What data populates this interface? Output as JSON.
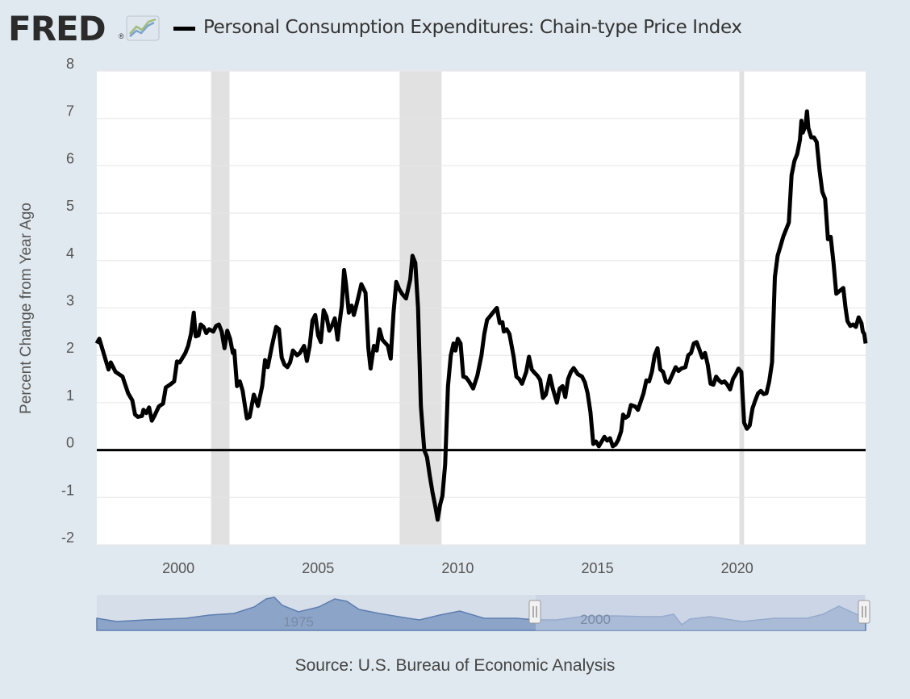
{
  "header": {
    "logo_text": "FRED",
    "logo_registered": "®",
    "series_title": "Personal Consumption Expenditures: Chain-type Price Index"
  },
  "source_note": "Source: U.S. Bureau of Economic Analysis",
  "navigator": {
    "tick_labels": [
      "1975",
      "2000"
    ],
    "handle_icon": "grip-handle-icon"
  },
  "colors": {
    "line": "#000000",
    "recession": "#e1e1e1",
    "background": "#e1e9f0",
    "navigator_fill": "#8ba4c8",
    "navigator_selection": "#c2cde4"
  },
  "chart_data": {
    "type": "line",
    "title": "",
    "ylabel": "Percent Change from Year Ago",
    "xlabel": "",
    "xlim": [
      1997.08,
      2024.6
    ],
    "ylim": [
      -2,
      8
    ],
    "y_ticks": [
      8,
      7,
      6,
      5,
      4,
      3,
      2,
      1,
      0,
      -1,
      -2
    ],
    "x_ticks": [
      2000,
      2005,
      2010,
      2015,
      2020
    ],
    "recessions": [
      [
        2001.17,
        2001.83
      ],
      [
        2007.92,
        2009.42
      ],
      [
        2020.08,
        2020.25
      ]
    ],
    "grid": true,
    "zero_line": true,
    "series": [
      {
        "name": "Personal Consumption Expenditures: Chain-type Price Index",
        "points": [
          [
            1997.08,
            2.25
          ],
          [
            1997.17,
            2.35
          ],
          [
            1997.5,
            1.7
          ],
          [
            1997.58,
            1.85
          ],
          [
            1997.75,
            1.65
          ],
          [
            1998.0,
            1.55
          ],
          [
            1998.2,
            1.2
          ],
          [
            1998.35,
            1.05
          ],
          [
            1998.45,
            0.75
          ],
          [
            1998.55,
            0.7
          ],
          [
            1998.7,
            0.72
          ],
          [
            1998.75,
            0.85
          ],
          [
            1998.85,
            0.78
          ],
          [
            1998.95,
            0.9
          ],
          [
            1999.05,
            0.62
          ],
          [
            1999.15,
            0.73
          ],
          [
            1999.3,
            0.92
          ],
          [
            1999.45,
            0.98
          ],
          [
            1999.55,
            1.32
          ],
          [
            1999.7,
            1.38
          ],
          [
            1999.85,
            1.45
          ],
          [
            1999.95,
            1.87
          ],
          [
            2000.05,
            1.85
          ],
          [
            2000.25,
            2.05
          ],
          [
            2000.35,
            2.2
          ],
          [
            2000.45,
            2.45
          ],
          [
            2000.55,
            2.9
          ],
          [
            2000.62,
            2.4
          ],
          [
            2000.72,
            2.42
          ],
          [
            2000.8,
            2.65
          ],
          [
            2000.9,
            2.6
          ],
          [
            2001.0,
            2.47
          ],
          [
            2001.1,
            2.55
          ],
          [
            2001.25,
            2.5
          ],
          [
            2001.35,
            2.62
          ],
          [
            2001.45,
            2.65
          ],
          [
            2001.55,
            2.5
          ],
          [
            2001.65,
            2.15
          ],
          [
            2001.75,
            2.52
          ],
          [
            2001.85,
            2.35
          ],
          [
            2001.95,
            2.05
          ],
          [
            2002.0,
            2.1
          ],
          [
            2002.1,
            1.35
          ],
          [
            2002.2,
            1.45
          ],
          [
            2002.3,
            1.25
          ],
          [
            2002.45,
            0.67
          ],
          [
            2002.55,
            0.7
          ],
          [
            2002.7,
            1.17
          ],
          [
            2002.85,
            0.93
          ],
          [
            2003.0,
            1.35
          ],
          [
            2003.1,
            1.9
          ],
          [
            2003.2,
            1.75
          ],
          [
            2003.35,
            2.2
          ],
          [
            2003.5,
            2.6
          ],
          [
            2003.6,
            2.55
          ],
          [
            2003.7,
            1.95
          ],
          [
            2003.8,
            1.8
          ],
          [
            2003.9,
            1.75
          ],
          [
            2004.0,
            1.85
          ],
          [
            2004.1,
            2.1
          ],
          [
            2004.25,
            2.0
          ],
          [
            2004.35,
            2.05
          ],
          [
            2004.5,
            2.2
          ],
          [
            2004.6,
            1.88
          ],
          [
            2004.7,
            2.2
          ],
          [
            2004.8,
            2.73
          ],
          [
            2004.9,
            2.85
          ],
          [
            2005.0,
            2.42
          ],
          [
            2005.1,
            2.28
          ],
          [
            2005.2,
            2.95
          ],
          [
            2005.3,
            2.82
          ],
          [
            2005.4,
            2.52
          ],
          [
            2005.5,
            2.63
          ],
          [
            2005.6,
            2.78
          ],
          [
            2005.7,
            2.33
          ],
          [
            2005.75,
            2.6
          ],
          [
            2005.85,
            3.05
          ],
          [
            2005.93,
            3.8
          ],
          [
            2006.0,
            3.5
          ],
          [
            2006.1,
            2.9
          ],
          [
            2006.2,
            3.05
          ],
          [
            2006.28,
            2.85
          ],
          [
            2006.38,
            3.08
          ],
          [
            2006.45,
            3.25
          ],
          [
            2006.55,
            3.5
          ],
          [
            2006.65,
            3.38
          ],
          [
            2006.7,
            3.32
          ],
          [
            2006.8,
            2.15
          ],
          [
            2006.88,
            1.72
          ],
          [
            2007.0,
            2.2
          ],
          [
            2007.1,
            2.1
          ],
          [
            2007.2,
            2.55
          ],
          [
            2007.3,
            2.33
          ],
          [
            2007.42,
            2.25
          ],
          [
            2007.5,
            2.2
          ],
          [
            2007.6,
            1.93
          ],
          [
            2007.7,
            2.9
          ],
          [
            2007.8,
            3.55
          ],
          [
            2007.9,
            3.4
          ],
          [
            2008.0,
            3.3
          ],
          [
            2008.15,
            3.2
          ],
          [
            2008.3,
            3.6
          ],
          [
            2008.38,
            4.1
          ],
          [
            2008.48,
            3.95
          ],
          [
            2008.58,
            3.0
          ],
          [
            2008.68,
            0.93
          ],
          [
            2008.8,
            0.0
          ],
          [
            2008.9,
            -0.15
          ],
          [
            2009.0,
            -0.55
          ],
          [
            2009.1,
            -0.9
          ],
          [
            2009.2,
            -1.2
          ],
          [
            2009.28,
            -1.47
          ],
          [
            2009.37,
            -1.15
          ],
          [
            2009.45,
            -0.97
          ],
          [
            2009.55,
            -0.3
          ],
          [
            2009.65,
            1.35
          ],
          [
            2009.75,
            2.0
          ],
          [
            2009.85,
            2.25
          ],
          [
            2009.92,
            2.1
          ],
          [
            2010.0,
            2.35
          ],
          [
            2010.1,
            2.25
          ],
          [
            2010.2,
            1.55
          ],
          [
            2010.3,
            1.53
          ],
          [
            2010.4,
            1.45
          ],
          [
            2010.55,
            1.3
          ],
          [
            2010.7,
            1.57
          ],
          [
            2010.85,
            2.0
          ],
          [
            2010.95,
            2.45
          ],
          [
            2011.05,
            2.75
          ],
          [
            2011.15,
            2.82
          ],
          [
            2011.3,
            2.93
          ],
          [
            2011.4,
            3.0
          ],
          [
            2011.5,
            2.68
          ],
          [
            2011.6,
            2.7
          ],
          [
            2011.65,
            2.5
          ],
          [
            2011.75,
            2.55
          ],
          [
            2011.85,
            2.45
          ],
          [
            2012.0,
            1.97
          ],
          [
            2012.1,
            1.55
          ],
          [
            2012.2,
            1.5
          ],
          [
            2012.3,
            1.4
          ],
          [
            2012.45,
            1.65
          ],
          [
            2012.55,
            1.97
          ],
          [
            2012.65,
            1.7
          ],
          [
            2012.75,
            1.63
          ],
          [
            2012.85,
            1.57
          ],
          [
            2012.95,
            1.48
          ],
          [
            2013.05,
            1.1
          ],
          [
            2013.15,
            1.17
          ],
          [
            2013.3,
            1.57
          ],
          [
            2013.4,
            1.3
          ],
          [
            2013.55,
            1.0
          ],
          [
            2013.65,
            1.3
          ],
          [
            2013.75,
            1.35
          ],
          [
            2013.85,
            1.12
          ],
          [
            2013.95,
            1.5
          ],
          [
            2014.05,
            1.65
          ],
          [
            2014.15,
            1.73
          ],
          [
            2014.3,
            1.6
          ],
          [
            2014.45,
            1.55
          ],
          [
            2014.55,
            1.43
          ],
          [
            2014.65,
            1.2
          ],
          [
            2014.75,
            0.8
          ],
          [
            2014.85,
            0.13
          ],
          [
            2014.95,
            0.18
          ],
          [
            2015.05,
            0.08
          ],
          [
            2015.15,
            0.18
          ],
          [
            2015.25,
            0.28
          ],
          [
            2015.35,
            0.2
          ],
          [
            2015.45,
            0.25
          ],
          [
            2015.55,
            0.08
          ],
          [
            2015.65,
            0.12
          ],
          [
            2015.75,
            0.22
          ],
          [
            2015.85,
            0.4
          ],
          [
            2015.92,
            0.75
          ],
          [
            2016.0,
            0.68
          ],
          [
            2016.1,
            0.72
          ],
          [
            2016.2,
            0.95
          ],
          [
            2016.35,
            0.92
          ],
          [
            2016.45,
            0.85
          ],
          [
            2016.55,
            1.02
          ],
          [
            2016.65,
            1.2
          ],
          [
            2016.75,
            1.47
          ],
          [
            2016.85,
            1.45
          ],
          [
            2016.95,
            1.65
          ],
          [
            2017.05,
            2.0
          ],
          [
            2017.15,
            2.15
          ],
          [
            2017.25,
            1.7
          ],
          [
            2017.35,
            1.65
          ],
          [
            2017.45,
            1.45
          ],
          [
            2017.55,
            1.42
          ],
          [
            2017.65,
            1.55
          ],
          [
            2017.8,
            1.75
          ],
          [
            2017.9,
            1.67
          ],
          [
            2018.0,
            1.72
          ],
          [
            2018.15,
            1.75
          ],
          [
            2018.25,
            2.0
          ],
          [
            2018.35,
            2.05
          ],
          [
            2018.45,
            2.25
          ],
          [
            2018.55,
            2.28
          ],
          [
            2018.65,
            2.12
          ],
          [
            2018.75,
            1.95
          ],
          [
            2018.85,
            2.05
          ],
          [
            2018.95,
            1.8
          ],
          [
            2019.05,
            1.4
          ],
          [
            2019.15,
            1.38
          ],
          [
            2019.25,
            1.55
          ],
          [
            2019.35,
            1.47
          ],
          [
            2019.45,
            1.42
          ],
          [
            2019.55,
            1.45
          ],
          [
            2019.65,
            1.38
          ],
          [
            2019.75,
            1.28
          ],
          [
            2019.85,
            1.5
          ],
          [
            2019.95,
            1.6
          ],
          [
            2020.05,
            1.72
          ],
          [
            2020.15,
            1.65
          ],
          [
            2020.25,
            0.58
          ],
          [
            2020.35,
            0.45
          ],
          [
            2020.45,
            0.52
          ],
          [
            2020.55,
            0.88
          ],
          [
            2020.65,
            1.05
          ],
          [
            2020.75,
            1.2
          ],
          [
            2020.85,
            1.25
          ],
          [
            2020.95,
            1.18
          ],
          [
            2021.05,
            1.2
          ],
          [
            2021.15,
            1.45
          ],
          [
            2021.25,
            1.85
          ],
          [
            2021.35,
            3.65
          ],
          [
            2021.45,
            4.1
          ],
          [
            2021.55,
            4.3
          ],
          [
            2021.65,
            4.5
          ],
          [
            2021.75,
            4.65
          ],
          [
            2021.85,
            4.8
          ],
          [
            2021.95,
            5.8
          ],
          [
            2022.05,
            6.1
          ],
          [
            2022.15,
            6.25
          ],
          [
            2022.25,
            6.55
          ],
          [
            2022.3,
            6.95
          ],
          [
            2022.35,
            6.7
          ],
          [
            2022.45,
            6.85
          ],
          [
            2022.5,
            7.15
          ],
          [
            2022.55,
            6.8
          ],
          [
            2022.65,
            6.6
          ],
          [
            2022.75,
            6.6
          ],
          [
            2022.85,
            6.5
          ],
          [
            2022.95,
            5.9
          ],
          [
            2023.05,
            5.45
          ],
          [
            2023.15,
            5.3
          ],
          [
            2023.25,
            4.45
          ],
          [
            2023.35,
            4.5
          ],
          [
            2023.45,
            3.95
          ],
          [
            2023.55,
            3.3
          ],
          [
            2023.65,
            3.35
          ],
          [
            2023.8,
            3.42
          ],
          [
            2023.88,
            3.0
          ],
          [
            2023.95,
            2.72
          ],
          [
            2024.05,
            2.62
          ],
          [
            2024.15,
            2.65
          ],
          [
            2024.25,
            2.6
          ],
          [
            2024.35,
            2.8
          ],
          [
            2024.45,
            2.68
          ],
          [
            2024.5,
            2.5
          ],
          [
            2024.55,
            2.45
          ],
          [
            2024.6,
            2.25
          ]
        ]
      }
    ]
  }
}
